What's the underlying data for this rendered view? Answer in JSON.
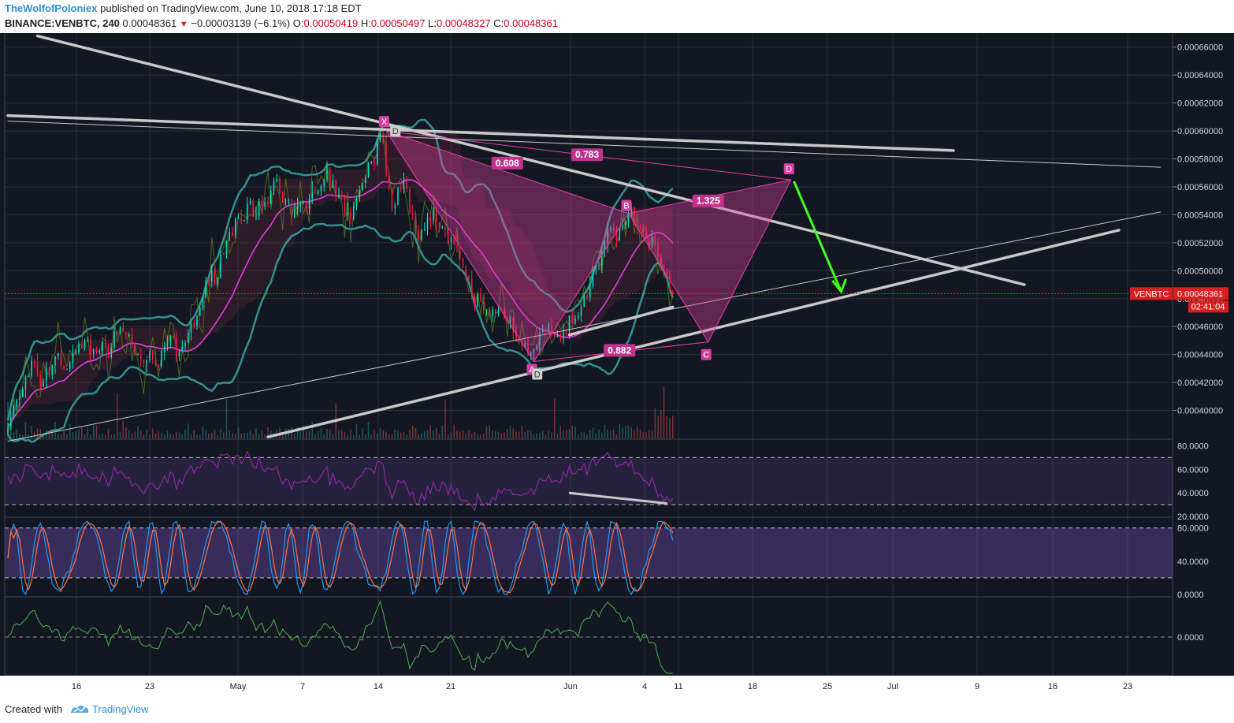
{
  "header": {
    "author": "TheWolfofPoloniex",
    "published_text": "published on TradingView.com, June 10, 2018 17:18 EDT",
    "symbol": "BINANCE:VENBTC, 240",
    "last": "0.00048361",
    "change": "−0.00003139 (−6.1%)",
    "open_label": "O:",
    "open": "0.00050419",
    "high_label": "H:",
    "high": "0.00050497",
    "low_label": "L:",
    "low": "0.00048327",
    "close_label": "C:",
    "close": "0.00048361"
  },
  "footer": {
    "created_with": "Created with",
    "brand": "TradingView"
  },
  "colors": {
    "background": "#131722",
    "grid": "#2a2e39",
    "axis_text": "#d1d4dc",
    "up": "#26a69a",
    "down": "#ef5350",
    "up_bright": "#00e5c8",
    "down_bright": "#ff1744",
    "trendline": "#c8c8c8",
    "harmonic": "#e040a0",
    "projection_arrow": "#44ff22",
    "price_line": "#ff2222",
    "rsi": "#9c27b0",
    "stoch_k": "#2196f3",
    "stoch_d": "#ff7043",
    "momentum": "#4caf50"
  },
  "chart_data": {
    "type": "candlestick",
    "symbol_label": "VENBTC",
    "current_price": 0.00048361,
    "price_label": "0.00048361",
    "countdown": "02:41:04",
    "ylim": [
      0.00038,
      0.00067
    ],
    "y_ticks": [
      "0.00066000",
      "0.00064000",
      "0.00062000",
      "0.00060000",
      "0.00058000",
      "0.00056000",
      "0.00054000",
      "0.00052000",
      "0.00050000",
      "0.00048000",
      "0.00046000",
      "0.00044000",
      "0.00042000",
      "0.00040000"
    ],
    "x_ticks": [
      "16",
      "23",
      "May",
      "7",
      "14",
      "21",
      "Jun",
      "4",
      "11",
      "18",
      "25",
      "Jul",
      "9",
      "16",
      "23"
    ],
    "close_path": [
      [
        0,
        0.00039
      ],
      [
        4,
        0.00041
      ],
      [
        8,
        0.00043
      ],
      [
        12,
        0.00042
      ],
      [
        16,
        0.00044
      ],
      [
        20,
        0.00043
      ],
      [
        26,
        0.00045
      ],
      [
        32,
        0.00044
      ],
      [
        38,
        0.00046
      ],
      [
        44,
        0.00044
      ],
      [
        50,
        0.00043
      ],
      [
        54,
        0.00045
      ],
      [
        58,
        0.00044
      ],
      [
        64,
        0.00047
      ],
      [
        70,
        0.0005
      ],
      [
        76,
        0.00053
      ],
      [
        82,
        0.00055
      ],
      [
        86,
        0.00054
      ],
      [
        90,
        0.00056
      ],
      [
        96,
        0.00054
      ],
      [
        102,
        0.00055
      ],
      [
        108,
        0.00057
      ],
      [
        112,
        0.00055
      ],
      [
        116,
        0.00054
      ],
      [
        120,
        0.00056
      ],
      [
        124,
        0.00058
      ],
      [
        126,
        0.0006
      ],
      [
        130,
        0.00055
      ],
      [
        134,
        0.00056
      ],
      [
        138,
        0.00053
      ],
      [
        144,
        0.00054
      ],
      [
        150,
        0.00052
      ],
      [
        154,
        0.0005
      ],
      [
        158,
        0.00048
      ],
      [
        162,
        0.00047
      ],
      [
        168,
        0.00047
      ],
      [
        174,
        0.00045
      ],
      [
        178,
        0.00044
      ],
      [
        182,
        0.00046
      ],
      [
        186,
        0.00045
      ],
      [
        190,
        0.00046
      ],
      [
        194,
        0.00047
      ],
      [
        198,
        0.0005
      ],
      [
        202,
        0.00052
      ],
      [
        206,
        0.00053
      ],
      [
        210,
        0.00054
      ],
      [
        214,
        0.00053
      ],
      [
        218,
        0.00052
      ],
      [
        222,
        0.0005
      ],
      [
        225,
        0.00048361
      ]
    ],
    "trendlines": [
      {
        "from": [
          10,
          0.000668
        ],
        "to": [
          344,
          0.00049
        ]
      },
      {
        "from": [
          0,
          0.000611
        ],
        "to": [
          320,
          0.000586
        ]
      },
      {
        "from": [
          0,
          0.000607
        ],
        "to": [
          390,
          0.000574
        ]
      },
      {
        "from": [
          88,
          0.000381
        ],
        "to": [
          376,
          0.000529
        ]
      },
      {
        "from": [
          0,
          0.000378
        ],
        "to": [
          390,
          0.000542
        ]
      },
      {
        "from": [
          190,
          0.000454
        ],
        "to": [
          225,
          0.000474
        ]
      }
    ],
    "harmonic_pattern": {
      "points": [
        {
          "label": "X",
          "x": 128,
          "y": 0.0006
        },
        {
          "label": "A",
          "x": 178,
          "y": 0.000435
        },
        {
          "label": "B",
          "x": 210,
          "y": 0.000541
        },
        {
          "label": "C",
          "x": 237,
          "y": 0.000449
        },
        {
          "label": "D",
          "x": 265,
          "y": 0.000565
        }
      ],
      "ratios": [
        {
          "label": "0.608",
          "x": 169,
          "y": 0.000577
        },
        {
          "label": "0.783",
          "x": 196,
          "y": 0.000583
        },
        {
          "label": "1.325",
          "x": 237,
          "y": 0.00055
        },
        {
          "label": "0.882",
          "x": 207,
          "y": 0.000443
        }
      ],
      "d_markers": [
        {
          "label": "D",
          "x": 131,
          "y": 0.0006
        },
        {
          "label": "D",
          "x": 179,
          "y": 0.000426
        }
      ]
    },
    "projection_arrow": {
      "from": [
        266,
        0.000564
      ],
      "to": [
        282,
        0.000485
      ]
    },
    "rsi": {
      "ylim": [
        20,
        85
      ],
      "ticks": [
        "80.0000",
        "60.0000",
        "40.0000",
        "20.0000"
      ],
      "upper": 70,
      "lower": 30
    },
    "stoch": {
      "ylim": [
        -2,
        92
      ],
      "ticks": [
        "80.0000",
        "40.0000",
        "0.0000"
      ],
      "upper": 80,
      "lower": 20
    },
    "momentum": {
      "ticks": [
        "0.0000"
      ]
    }
  }
}
